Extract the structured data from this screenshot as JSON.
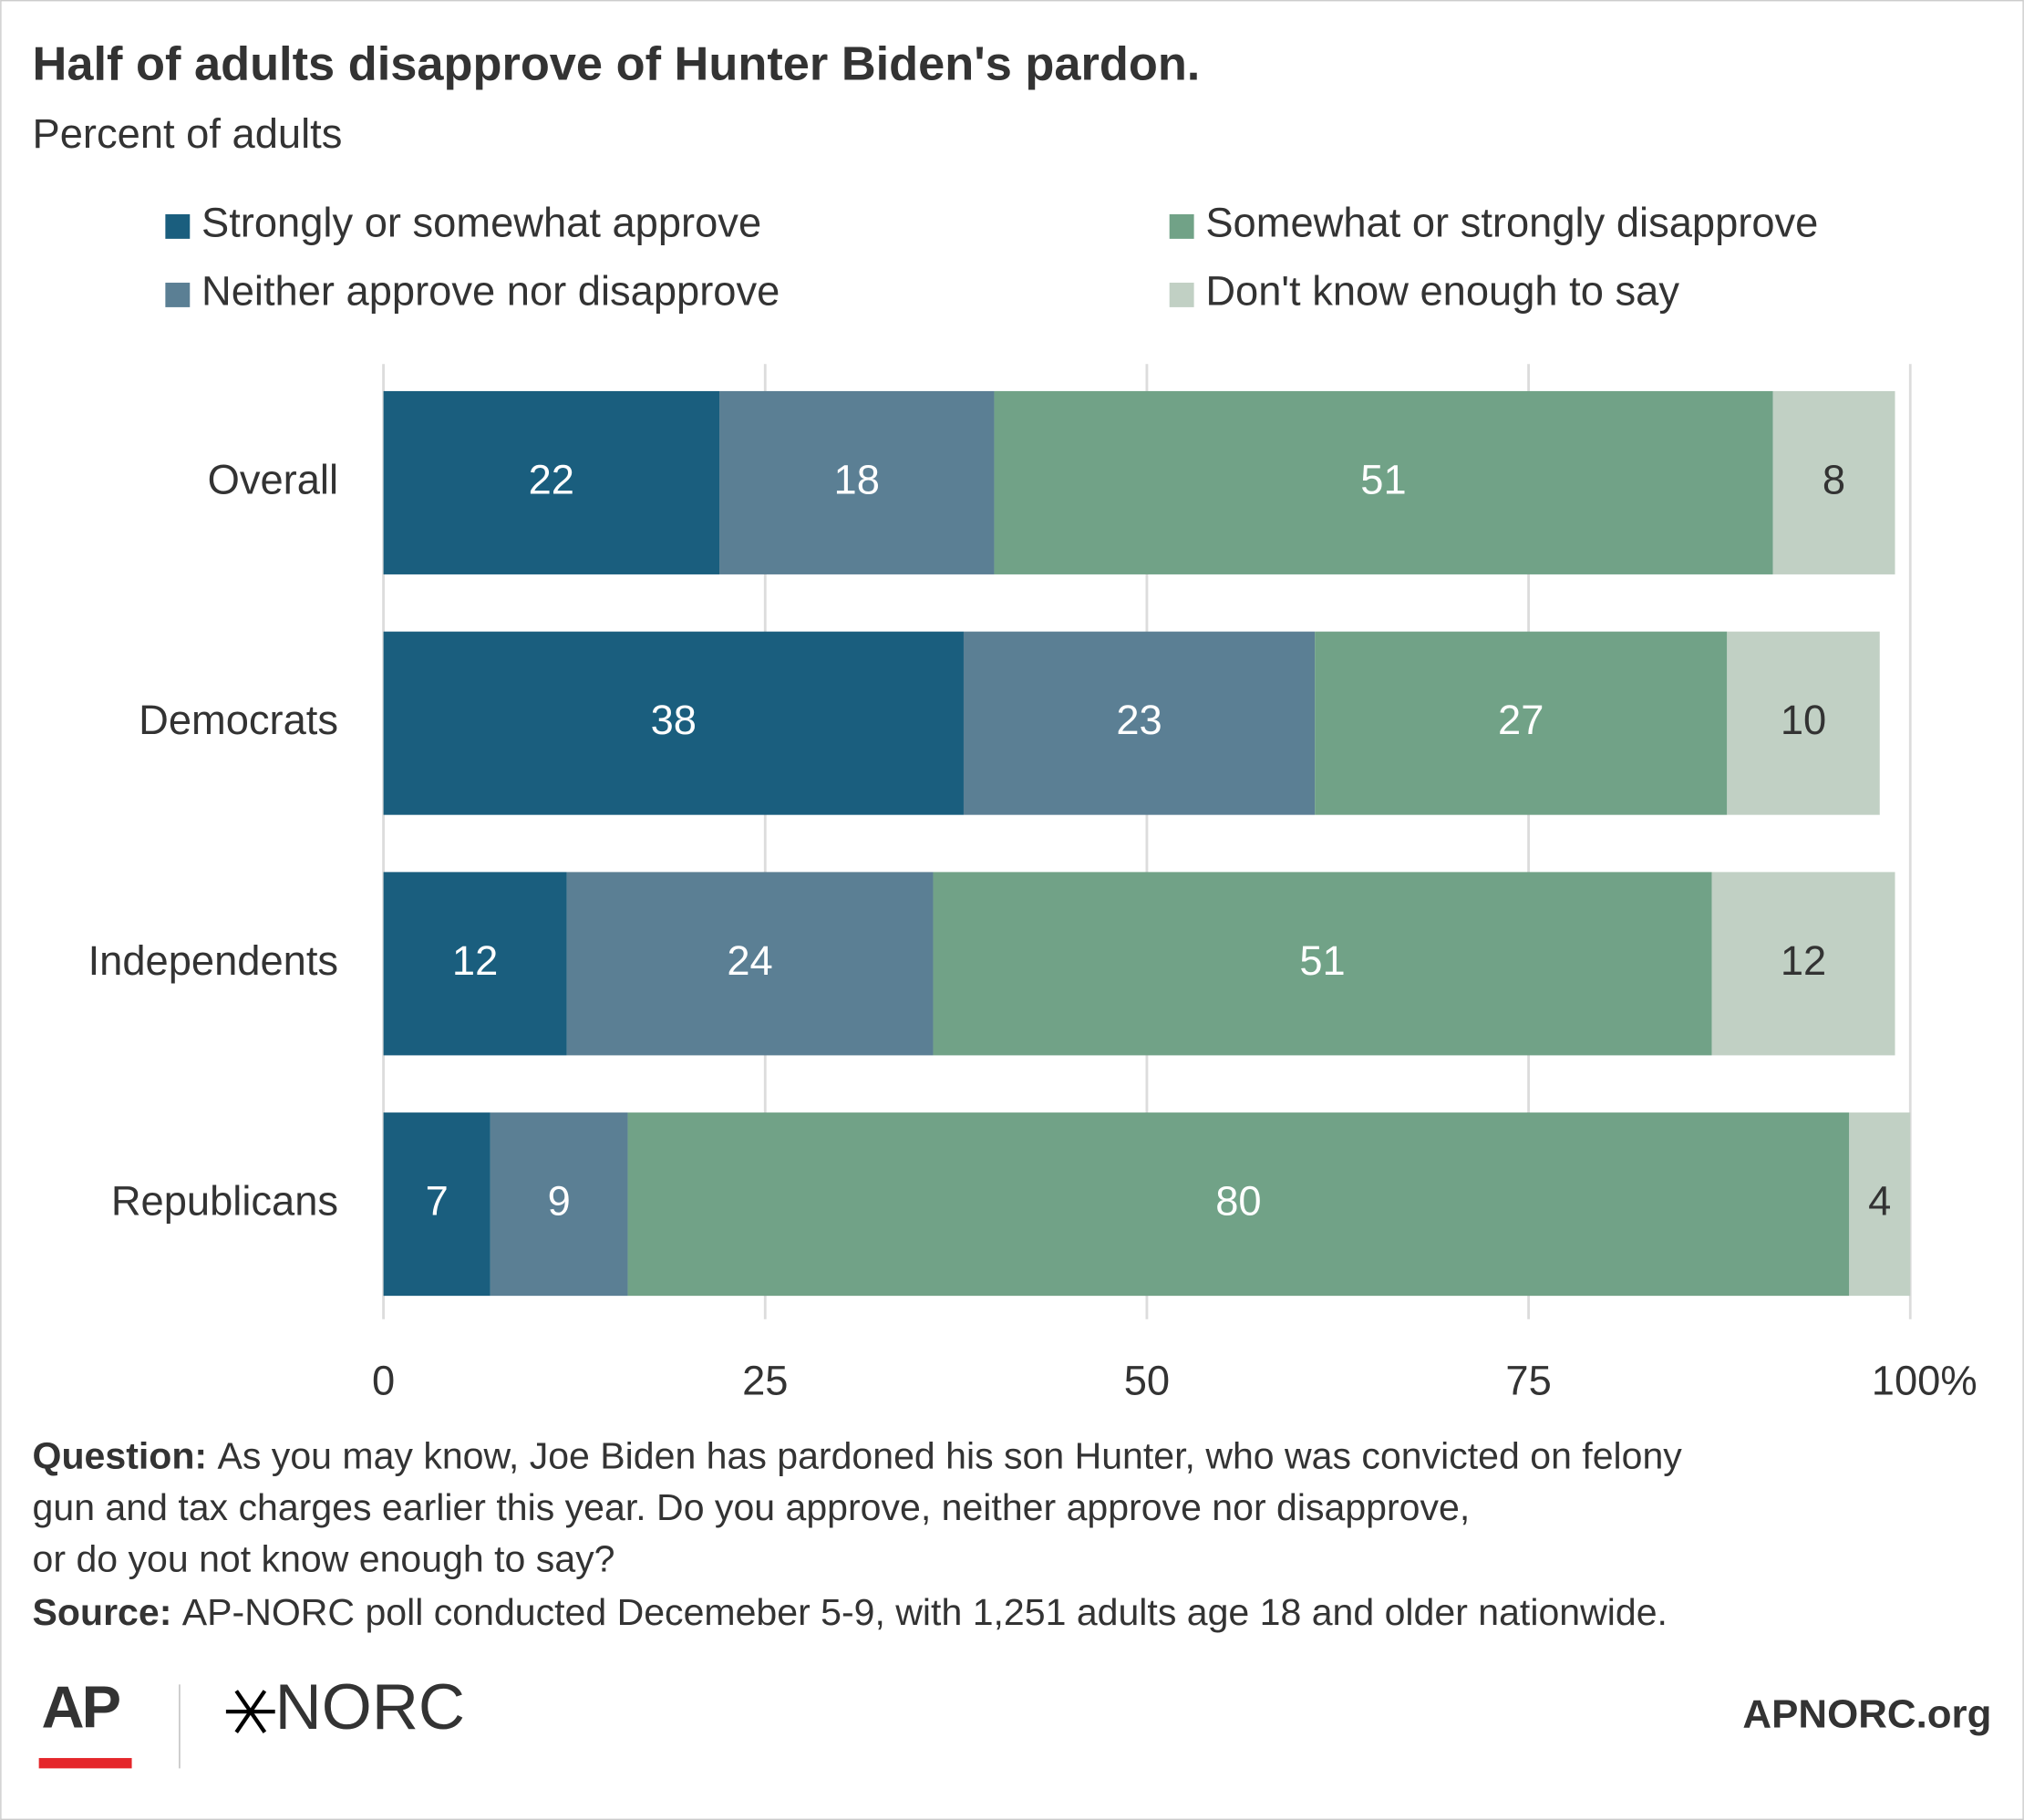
{
  "chart_data": {
    "type": "bar",
    "orientation": "horizontal",
    "stacked": true,
    "title": "Half of adults disapprove of Hunter Biden's pardon.",
    "subtitle": "Percent of adults",
    "categories": [
      "Overall",
      "Democrats",
      "Independents",
      "Republicans"
    ],
    "series": [
      {
        "name": "Strongly or somewhat approve",
        "color": "#1a5e7e",
        "label_color": "#ffffff",
        "values": [
          22,
          38,
          12,
          7
        ]
      },
      {
        "name": "Neither approve nor disapprove",
        "color": "#5b7f94",
        "label_color": "#ffffff",
        "values": [
          18,
          23,
          24,
          9
        ]
      },
      {
        "name": "Somewhat or strongly disapprove",
        "color": "#71a287",
        "label_color": "#ffffff",
        "values": [
          51,
          27,
          51,
          80
        ]
      },
      {
        "name": "Don't know enough to say",
        "color": "#c1d0c4",
        "label_color": "#333333",
        "values": [
          8,
          10,
          12,
          4
        ]
      }
    ],
    "xlim": [
      0,
      100
    ],
    "xticks": [
      0,
      25,
      50,
      75,
      {
        "value": 100,
        "label": "100%"
      }
    ],
    "grid": true,
    "legend": "top"
  },
  "footer": {
    "question_label": "Question:",
    "question_lines": [
      "As you may know, Joe Biden has pardoned his son Hunter, who was convicted on felony",
      "gun and tax charges earlier this year. Do you approve, neither approve nor disapprove,",
      "or do you not know enough to say?"
    ],
    "source_label": "Source:",
    "source_text": "AP-NORC poll conducted Decemeber 5-9, with 1,251 adults age 18 and older nationwide.",
    "logo_ap": "AP",
    "logo_norc": "NORC",
    "site": "APNORC.org"
  }
}
